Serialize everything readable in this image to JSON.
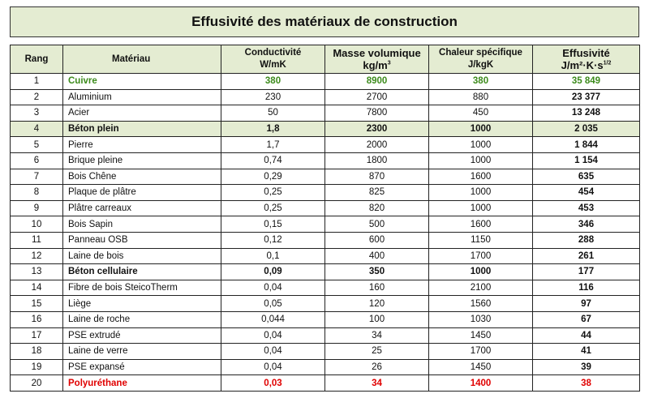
{
  "title": "Effusivité des matériaux de construction",
  "headers": {
    "rang": "Rang",
    "materiau": "Matériau",
    "conductivite_1": "Conductivité",
    "conductivite_2": "W/mK",
    "masse_1": "Masse volumique",
    "masse_2": "kg/m",
    "masse_sup": "3",
    "chaleur_1": "Chaleur spécifique",
    "chaleur_2": "J/kgK",
    "effusivite_1": "Effusivité",
    "effusivite_2": "J/m²·K·s",
    "effusivite_sup": "1/2"
  },
  "colors": {
    "header_bg": "#e4ecd2",
    "green_text": "#3c8b1b",
    "red_text": "#e00000"
  },
  "rows": [
    {
      "style": "green",
      "cells": [
        "1",
        "Cuivre",
        "380",
        "8900",
        "380",
        "35 849"
      ]
    },
    {
      "style": "",
      "cells": [
        "2",
        "Aluminium",
        "230",
        "2700",
        "880",
        "23 377"
      ]
    },
    {
      "style": "",
      "cells": [
        "3",
        "Acier",
        "50",
        "7800",
        "450",
        "13 248"
      ]
    },
    {
      "style": "bg",
      "cells": [
        "4",
        "Béton plein",
        "1,8",
        "2300",
        "1000",
        "2 035"
      ]
    },
    {
      "style": "",
      "cells": [
        "5",
        "Pierre",
        "1,7",
        "2000",
        "1000",
        "1 844"
      ]
    },
    {
      "style": "",
      "cells": [
        "6",
        "Brique pleine",
        "0,74",
        "1800",
        "1000",
        "1 154"
      ]
    },
    {
      "style": "",
      "cells": [
        "7",
        "Bois Chêne",
        "0,29",
        "870",
        "1600",
        "635"
      ]
    },
    {
      "style": "",
      "cells": [
        "8",
        "Plaque de plâtre",
        "0,25",
        "825",
        "1000",
        "454"
      ]
    },
    {
      "style": "",
      "cells": [
        "9",
        "Plâtre carreaux",
        "0,25",
        "820",
        "1000",
        "453"
      ]
    },
    {
      "style": "",
      "cells": [
        "10",
        "Bois Sapin",
        "0,15",
        "500",
        "1600",
        "346"
      ]
    },
    {
      "style": "",
      "cells": [
        "11",
        "Panneau OSB",
        "0,12",
        "600",
        "1150",
        "288"
      ]
    },
    {
      "style": "",
      "cells": [
        "12",
        "Laine de bois",
        "0,1",
        "400",
        "1700",
        "261"
      ]
    },
    {
      "style": "bold",
      "cells": [
        "13",
        "Béton cellulaire",
        "0,09",
        "350",
        "1000",
        "177"
      ]
    },
    {
      "style": "",
      "cells": [
        "14",
        "Fibre de bois SteicoTherm",
        "0,04",
        "160",
        "2100",
        "116"
      ]
    },
    {
      "style": "",
      "cells": [
        "15",
        "Liège",
        "0,05",
        "120",
        "1560",
        "97"
      ]
    },
    {
      "style": "",
      "cells": [
        "16",
        "Laine de roche",
        "0,044",
        "100",
        "1030",
        "67"
      ]
    },
    {
      "style": "",
      "cells": [
        "17",
        "PSE extrudé",
        "0,04",
        "34",
        "1450",
        "44"
      ]
    },
    {
      "style": "",
      "cells": [
        "18",
        "Laine de verre",
        "0,04",
        "25",
        "1700",
        "41"
      ]
    },
    {
      "style": "",
      "cells": [
        "19",
        "PSE expansé",
        "0,04",
        "26",
        "1450",
        "39"
      ]
    },
    {
      "style": "red",
      "cells": [
        "20",
        "Polyuréthane",
        "0,03",
        "34",
        "1400",
        "38"
      ]
    }
  ]
}
